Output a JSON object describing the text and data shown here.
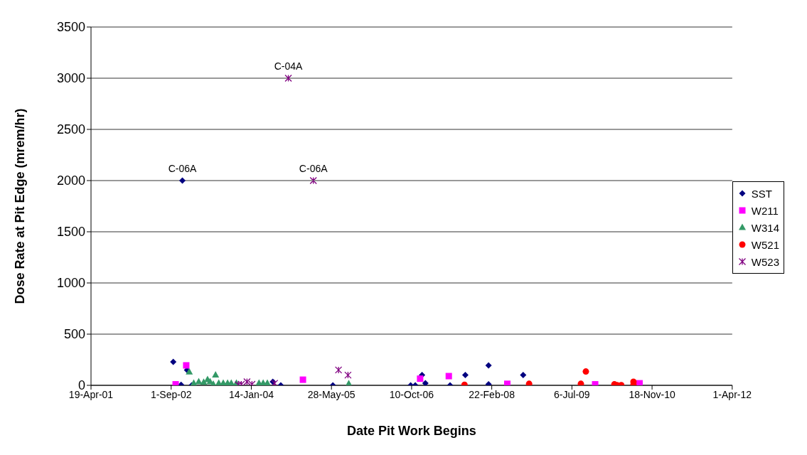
{
  "chart_data": {
    "type": "scatter",
    "xlabel": "Date Pit Work Begins",
    "ylabel": "Dose Rate at Pit Edge (mrem/hr)",
    "xlim": [
      "2001-04-19",
      "2012-04-01"
    ],
    "xticks": [
      {
        "value": "2001-04-19",
        "label": "19-Apr-01"
      },
      {
        "value": "2002-09-01",
        "label": "1-Sep-02"
      },
      {
        "value": "2004-01-14",
        "label": "14-Jan-04"
      },
      {
        "value": "2005-05-28",
        "label": "28-May-05"
      },
      {
        "value": "2006-10-10",
        "label": "10-Oct-06"
      },
      {
        "value": "2008-02-22",
        "label": "22-Feb-08"
      },
      {
        "value": "2009-07-06",
        "label": "6-Jul-09"
      },
      {
        "value": "2010-11-18",
        "label": "18-Nov-10"
      },
      {
        "value": "2012-04-01",
        "label": "1-Apr-12"
      }
    ],
    "ylim": [
      0,
      3500
    ],
    "yticks": [
      0,
      500,
      1000,
      1500,
      2000,
      2500,
      3000,
      3500
    ],
    "grid": "y",
    "legend": "right",
    "series": [
      {
        "name": "SST",
        "color": "#000080",
        "marker": "diamond",
        "x": [
          "2002-09-14",
          "2002-11-10",
          "2002-12-09",
          "2002-11-02",
          "2003-01-07",
          "2004-05-27",
          "2004-07-16",
          "2005-06-06",
          "2006-10-04",
          "2006-11-02",
          "2006-12-14",
          "2007-01-04",
          "2007-06-07",
          "2007-09-10",
          "2008-02-02",
          "2008-02-02",
          "2008-09-05"
        ],
        "values": [
          230,
          2000,
          150,
          5,
          0,
          35,
          0,
          0,
          0,
          0,
          100,
          20,
          0,
          100,
          195,
          10,
          100
        ]
      },
      {
        "name": "W211",
        "color": "#ff00ff",
        "marker": "square",
        "x": [
          "2002-09-29",
          "2002-12-04",
          "2004-12-01",
          "2006-12-02",
          "2007-05-30",
          "2008-05-29",
          "2009-11-28",
          "2010-09-01"
        ],
        "values": [
          10,
          195,
          55,
          65,
          90,
          15,
          10,
          20
        ]
      },
      {
        "name": "W314",
        "color": "#339966",
        "marker": "triangle",
        "x": [
          "2002-12-23",
          "2003-01-20",
          "2003-02-20",
          "2003-03-23",
          "2003-04-16",
          "2003-05-02",
          "2003-05-22",
          "2003-06-05",
          "2003-06-25",
          "2003-07-23",
          "2003-08-19",
          "2003-09-11",
          "2003-10-13",
          "2004-03-02",
          "2004-03-28",
          "2004-04-23",
          "2005-09-13"
        ],
        "values": [
          130,
          20,
          35,
          30,
          55,
          35,
          10,
          100,
          20,
          20,
          20,
          20,
          20,
          20,
          20,
          20,
          15
        ]
      },
      {
        "name": "W521",
        "color": "#ff0000",
        "marker": "circle",
        "x": [
          "2007-09-05",
          "2008-10-12",
          "2009-08-31",
          "2009-10-01",
          "2010-03-28",
          "2010-04-13",
          "2010-05-10",
          "2010-07-25",
          "2010-07-25"
        ],
        "values": [
          5,
          15,
          15,
          135,
          10,
          2,
          2,
          35,
          5
        ]
      },
      {
        "name": "W523",
        "color": "#800080",
        "marker": "cross",
        "x": [
          "2003-10-25",
          "2003-11-13",
          "2003-12-18",
          "2004-01-18",
          "2004-06-07",
          "2004-09-01",
          "2005-02-04",
          "2005-07-11",
          "2005-09-08"
        ],
        "values": [
          5,
          10,
          35,
          10,
          20,
          3000,
          2000,
          150,
          100
        ]
      }
    ],
    "annotations": [
      {
        "text": "C-06A",
        "x": "2002-11-10",
        "y": 2000
      },
      {
        "text": "C-04A",
        "x": "2004-09-01",
        "y": 3000
      },
      {
        "text": "C-06A",
        "x": "2005-02-04",
        "y": 2000
      }
    ]
  }
}
